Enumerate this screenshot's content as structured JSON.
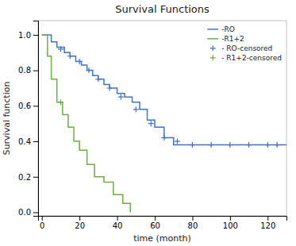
{
  "chart_data": {
    "type": "line",
    "title": "Survival Functions",
    "x_label": "time (month)",
    "y_label": "Survival function",
    "xlim": [
      -2,
      130
    ],
    "ylim": [
      -0.02,
      1.08
    ],
    "xticks": [
      0,
      20,
      40,
      60,
      80,
      100,
      120
    ],
    "yticks": [
      {
        "value": 0.0,
        "label": "0.0"
      },
      0.2,
      0.4,
      0.6,
      0.8,
      {
        "value": 1.0,
        "label": "1.0"
      }
    ],
    "grid": false,
    "legend": "upper right",
    "series": [
      {
        "name": "-RO",
        "type": "step",
        "color": "#4472c4",
        "x": [
          0,
          5,
          8,
          12,
          15,
          18,
          21,
          24,
          27,
          30,
          33,
          36,
          40,
          44,
          48,
          52,
          56,
          60,
          65,
          70,
          130
        ],
        "values": [
          1.0,
          0.96,
          0.93,
          0.9,
          0.88,
          0.85,
          0.83,
          0.8,
          0.77,
          0.75,
          0.72,
          0.7,
          0.67,
          0.65,
          0.62,
          0.58,
          0.52,
          0.48,
          0.42,
          0.38,
          0.38
        ]
      },
      {
        "name": "-R1+2",
        "type": "step",
        "color": "#70ad47",
        "x": [
          0,
          3,
          5,
          8,
          11,
          14,
          17,
          20,
          24,
          28,
          33,
          38,
          43,
          47
        ],
        "values": [
          1.0,
          0.88,
          0.75,
          0.62,
          0.55,
          0.48,
          0.4,
          0.35,
          0.27,
          0.2,
          0.17,
          0.1,
          0.05,
          0.0
        ]
      },
      {
        "name": "- RO-censored",
        "type": "scatter",
        "marker": "plus",
        "color": "#4472c4",
        "x": [
          10,
          15,
          20,
          25,
          30,
          36,
          42,
          50,
          58,
          65,
          72,
          80,
          90,
          100,
          110,
          120,
          125
        ],
        "values": [
          0.92,
          0.88,
          0.85,
          0.8,
          0.75,
          0.7,
          0.65,
          0.58,
          0.5,
          0.42,
          0.4,
          0.38,
          0.38,
          0.38,
          0.38,
          0.38,
          0.38
        ]
      },
      {
        "name": "- R1+2-censored",
        "type": "scatter",
        "marker": "plus",
        "color": "#70ad47",
        "x": [
          10
        ],
        "values": [
          0.62
        ]
      }
    ]
  }
}
